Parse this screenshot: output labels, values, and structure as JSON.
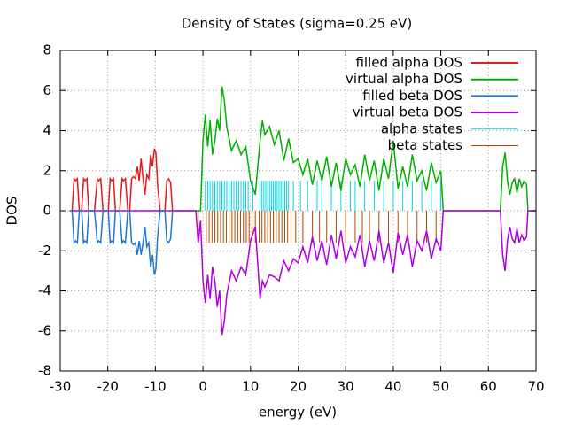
{
  "chart_data": {
    "type": "line",
    "title": "Density of States (sigma=0.25 eV)",
    "x_label": "energy (eV)",
    "y_label": "DOS",
    "xlim": [
      -30,
      70
    ],
    "xticks": [
      -30,
      -20,
      -10,
      0,
      10,
      20,
      30,
      40,
      50,
      60,
      70
    ],
    "ylim": [
      -8,
      8
    ],
    "yticks": [
      -8,
      -6,
      -4,
      -2,
      0,
      2,
      4,
      6,
      8
    ],
    "grid": true,
    "legend": "top-right",
    "series": [
      {
        "name": "filled alpha DOS",
        "color": "#e41a1c",
        "style": "lines",
        "x": [
          -28,
          -27.5,
          -27.1,
          -26.8,
          -26.4,
          -26,
          -25.5,
          -25.1,
          -24.8,
          -24.4,
          -24,
          -22.8,
          -22.2,
          -21.9,
          -21.5,
          -21,
          -19.9,
          -19.5,
          -19.2,
          -18.8,
          -18.4,
          -17.5,
          -17,
          -16.7,
          -16.3,
          -15.8,
          -15.4,
          -15,
          -14.6,
          -14.2,
          -13.8,
          -13.4,
          -13,
          -12.6,
          -12.2,
          -11.8,
          -11.4,
          -11,
          -10.6,
          -10.2,
          -9.9,
          -9.5,
          -9,
          -8,
          -7.6,
          -7.2,
          -6.8,
          -6.4
        ],
        "values": [
          0,
          0,
          1.6,
          1.5,
          1.6,
          0,
          0,
          1.6,
          1.5,
          1.6,
          0,
          0,
          1.6,
          1.5,
          1.6,
          0,
          0,
          1.6,
          1.5,
          1.6,
          0,
          0,
          1.6,
          1.5,
          1.6,
          0,
          0,
          1.6,
          1.7,
          1.6,
          2.2,
          1.5,
          2.6,
          1.6,
          0.8,
          1.8,
          1.6,
          2.8,
          2.2,
          3.1,
          2.9,
          1.2,
          0,
          0,
          1.5,
          1.6,
          1.4,
          0
        ]
      },
      {
        "name": "virtual alpha DOS",
        "color": "#00b000",
        "style": "lines",
        "x": [
          -6.5,
          -0.5,
          0,
          0.5,
          1,
          1.5,
          2,
          2.5,
          3,
          3.5,
          4,
          4.5,
          5,
          6,
          7,
          8,
          9,
          10,
          11,
          12,
          12.5,
          13,
          14,
          15,
          16,
          17,
          18,
          19,
          20,
          21,
          22,
          23,
          24,
          25,
          26,
          27,
          28,
          29,
          30,
          31,
          32,
          33,
          34,
          35,
          36,
          37,
          38,
          39,
          40,
          41,
          42,
          43,
          44,
          45,
          46,
          47,
          48,
          49,
          50,
          50.5,
          62.5,
          63,
          63.5,
          64,
          64.5,
          65,
          65.5,
          66,
          66.5,
          67,
          67.5,
          68,
          68.3
        ],
        "values": [
          0,
          0,
          3.5,
          4.8,
          3.2,
          4.5,
          2.8,
          3.5,
          4.6,
          4,
          6.2,
          5.5,
          4.2,
          3,
          3.5,
          2.8,
          3.2,
          1.5,
          0.8,
          3.5,
          4.5,
          3.8,
          4.2,
          3.3,
          4,
          2.5,
          3.6,
          2.4,
          2.6,
          1.8,
          2.6,
          1.3,
          2.5,
          1.5,
          2.7,
          1.2,
          2.4,
          1,
          2.6,
          1.8,
          2.3,
          1.2,
          2.8,
          1.5,
          2.5,
          1,
          2.6,
          1.6,
          3.5,
          1.1,
          2.2,
          1.2,
          2.8,
          1.5,
          2,
          1,
          2.4,
          1.4,
          2,
          0,
          0,
          2.2,
          2.9,
          1.5,
          0.8,
          1.4,
          1.6,
          0.9,
          1.6,
          1.2,
          1.5,
          1.3,
          0
        ]
      },
      {
        "name": "filled beta DOS",
        "color": "#1f78d0",
        "style": "lines",
        "x": [
          -28,
          -27.5,
          -27.1,
          -26.8,
          -26.4,
          -26,
          -25.5,
          -25.1,
          -24.8,
          -24.4,
          -24,
          -22.8,
          -22.2,
          -21.9,
          -21.5,
          -21,
          -19.9,
          -19.5,
          -19.2,
          -18.8,
          -18.4,
          -17.5,
          -17,
          -16.7,
          -16.3,
          -15.8,
          -15.4,
          -15,
          -14.6,
          -14.2,
          -13.8,
          -13.4,
          -13,
          -12.6,
          -12.2,
          -11.8,
          -11.4,
          -11,
          -10.6,
          -10.2,
          -9.9,
          -9.5,
          -9,
          -8,
          -7.6,
          -7.2,
          -6.8,
          -6.4
        ],
        "values": [
          0,
          0,
          -1.6,
          -1.5,
          -1.6,
          0,
          0,
          -1.6,
          -1.5,
          -1.6,
          0,
          0,
          -1.6,
          -1.5,
          -1.6,
          0,
          0,
          -1.6,
          -1.5,
          -1.6,
          0,
          0,
          -1.6,
          -1.5,
          -1.6,
          0,
          0,
          -1.6,
          -1.7,
          -1.6,
          -2.2,
          -1.5,
          -2.2,
          -1.6,
          -0.8,
          -1.8,
          -1.6,
          -2.8,
          -2.2,
          -3.2,
          -2.9,
          -1.2,
          0,
          0,
          -1.5,
          -1.6,
          -1.4,
          0
        ]
      },
      {
        "name": "virtual beta DOS",
        "color": "#b000e0",
        "style": "lines",
        "x": [
          -28,
          -6.5,
          -1.5,
          -1,
          -0.5,
          0,
          0.5,
          1,
          1.5,
          2,
          2.5,
          3,
          3.5,
          4,
          4.5,
          5,
          6,
          7,
          8,
          9,
          10,
          11,
          12,
          12.5,
          13,
          14,
          15,
          16,
          17,
          18,
          19,
          20,
          21,
          22,
          23,
          24,
          25,
          26,
          27,
          28,
          29,
          30,
          31,
          32,
          33,
          34,
          35,
          36,
          37,
          38,
          39,
          40,
          41,
          42,
          43,
          44,
          45,
          46,
          47,
          48,
          49,
          50,
          50.5,
          62.5,
          63,
          63.5,
          64,
          64.5,
          65,
          65.5,
          66,
          66.5,
          67,
          67.5,
          68,
          68.3,
          70
        ],
        "values": [
          0,
          0,
          0,
          -1.6,
          -0.5,
          -3.5,
          -4.6,
          -3.2,
          -4.4,
          -2.8,
          -3.5,
          -4.8,
          -4,
          -6.2,
          -5.5,
          -4.2,
          -3,
          -3.5,
          -2.8,
          -3.2,
          -1.5,
          -0.8,
          -4.4,
          -3.5,
          -3.8,
          -3.2,
          -3.3,
          -3.5,
          -2.5,
          -3,
          -2.4,
          -2.6,
          -1.8,
          -2.6,
          -1.3,
          -2.5,
          -1.5,
          -2.7,
          -1.2,
          -2.4,
          -1,
          -2.6,
          -1.8,
          -2.3,
          -1.2,
          -2.8,
          -1.5,
          -2.5,
          -1,
          -2.6,
          -1.6,
          -3.1,
          -1.1,
          -2.2,
          -1.2,
          -2.8,
          -1.5,
          -2,
          -1,
          -2.4,
          -1.4,
          -2,
          0,
          0,
          -2.2,
          -3,
          -1.5,
          -0.8,
          -1.4,
          -1.6,
          -0.9,
          -1.6,
          -1.2,
          -1.5,
          -1.3,
          0,
          0
        ]
      },
      {
        "name": "alpha states",
        "color": "#00d8e8",
        "style": "impulses",
        "x": [
          0.5,
          1,
          1.5,
          2,
          2.5,
          3,
          3.5,
          4,
          4.5,
          5,
          5.5,
          6,
          6.5,
          7,
          7.5,
          8,
          8.5,
          9,
          9.5,
          10.5,
          12,
          12.4,
          12.8,
          13.2,
          13.6,
          14,
          14.4,
          14.8,
          15.2,
          15.6,
          16,
          16.4,
          16.8,
          17.2,
          17.6,
          18,
          19,
          20.5,
          22,
          24,
          25,
          27,
          29,
          31,
          32,
          34,
          36,
          38,
          40,
          42,
          44,
          46,
          48,
          50
        ],
        "values": [
          1.5,
          1.5,
          1.5,
          1.5,
          1.5,
          1.5,
          1.5,
          1.5,
          1.5,
          1.5,
          1.5,
          1.5,
          1.5,
          1.5,
          1.5,
          1.5,
          1.5,
          1.5,
          1.5,
          1.5,
          1.5,
          1.5,
          1.5,
          1.5,
          1.5,
          1.5,
          1.5,
          1.5,
          1.5,
          1.5,
          1.5,
          1.5,
          1.5,
          1.5,
          1.5,
          1.5,
          1.5,
          1.5,
          1.5,
          1.5,
          1.5,
          1.5,
          1.5,
          1.5,
          1.5,
          1.5,
          1.5,
          1.5,
          1.5,
          1.5,
          1.5,
          1.5,
          1.5,
          1.5
        ]
      },
      {
        "name": "beta states",
        "color": "#b04a00",
        "style": "impulses",
        "x": [
          -1,
          0.7,
          1.3,
          1.9,
          2.5,
          3.1,
          3.7,
          4.3,
          4.9,
          5.5,
          6.1,
          6.7,
          7.3,
          7.9,
          8.5,
          9.1,
          9.7,
          10.3,
          11,
          11.8,
          12.4,
          13,
          13.6,
          14.2,
          14.8,
          15.4,
          16,
          16.6,
          17.2,
          17.8,
          18.5,
          19.5,
          21,
          23,
          24.5,
          26,
          28,
          30,
          32,
          33.5,
          35,
          37,
          39,
          41,
          43,
          45,
          47,
          49
        ],
        "values": [
          -1.6,
          -1.6,
          -1.6,
          -1.6,
          -1.6,
          -1.6,
          -1.6,
          -1.6,
          -1.6,
          -1.6,
          -1.6,
          -1.6,
          -1.6,
          -1.6,
          -1.6,
          -1.6,
          -1.6,
          -1.6,
          -1.6,
          -1.6,
          -1.6,
          -1.6,
          -1.6,
          -1.6,
          -1.6,
          -1.6,
          -1.6,
          -1.6,
          -1.6,
          -1.6,
          -1.6,
          -1.6,
          -1.6,
          -1.6,
          -1.6,
          -1.6,
          -1.6,
          -1.6,
          -1.6,
          -1.6,
          -1.6,
          -1.6,
          -1.6,
          -1.6,
          -1.6,
          -1.6,
          -1.6,
          -1.6
        ]
      }
    ]
  }
}
